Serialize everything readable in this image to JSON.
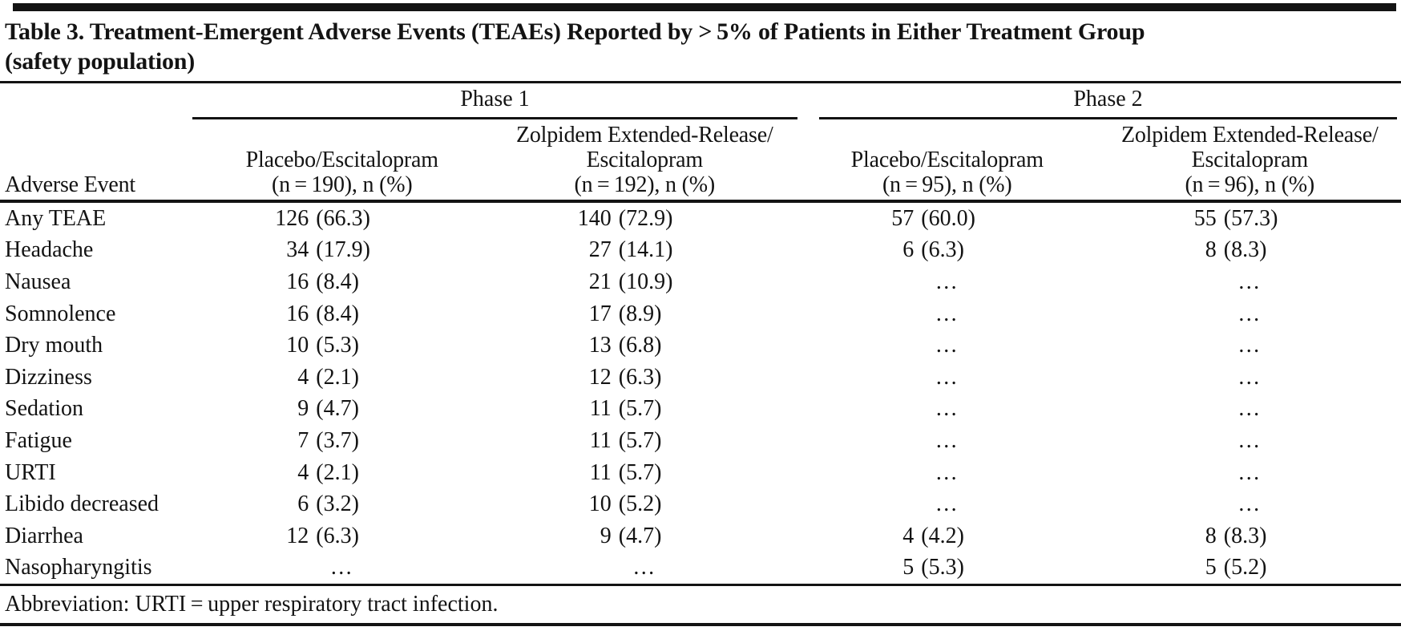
{
  "colors": {
    "ink": "#131313",
    "background": "#ffffff"
  },
  "title": {
    "lines": [
      "Table 3. Treatment-Emergent Adverse Events (TEAEs) Reported by > 5% of Patients in Either Treatment Group",
      "(safety population)"
    ]
  },
  "table": {
    "phases": [
      "Phase 1",
      "Phase 2"
    ],
    "header": {
      "row_label": {
        "line1": "",
        "line2": "",
        "line3": "Adverse Event"
      },
      "columns": [
        {
          "phase": "Phase 1",
          "line1": "",
          "line2": "Placebo/Escitalopram",
          "line3": "(n = 190), n (%)"
        },
        {
          "phase": "Phase 1",
          "line1": "Zolpidem Extended-Release/",
          "line2": "Escitalopram",
          "line3": "(n = 192), n (%)"
        },
        {
          "phase": "Phase 2",
          "line1": "",
          "line2": "Placebo/Escitalopram",
          "line3": "(n = 95), n (%)"
        },
        {
          "phase": "Phase 2",
          "line1": "Zolpidem Extended-Release/",
          "line2": "Escitalopram",
          "line3": "(n = 96), n (%)"
        }
      ]
    },
    "rows": [
      {
        "event": "Any TEAE",
        "values": [
          "126 (66.3)",
          "140 (72.9)",
          "57 (60.0)",
          "55 (57.3)"
        ]
      },
      {
        "event": "Headache",
        "values": [
          "34 (17.9)",
          "27 (14.1)",
          "6 (6.3)",
          "8 (8.3)"
        ]
      },
      {
        "event": "Nausea",
        "values": [
          "16 (8.4)",
          "21 (10.9)",
          "…",
          "…"
        ]
      },
      {
        "event": "Somnolence",
        "values": [
          "16 (8.4)",
          "17 (8.9)",
          "…",
          "…"
        ]
      },
      {
        "event": "Dry mouth",
        "values": [
          "10 (5.3)",
          "13 (6.8)",
          "…",
          "…"
        ]
      },
      {
        "event": "Dizziness",
        "values": [
          "4 (2.1)",
          "12 (6.3)",
          "…",
          "…"
        ]
      },
      {
        "event": "Sedation",
        "values": [
          "9 (4.7)",
          "11 (5.7)",
          "…",
          "…"
        ]
      },
      {
        "event": "Fatigue",
        "values": [
          "7 (3.7)",
          "11 (5.7)",
          "…",
          "…"
        ]
      },
      {
        "event": "URTI",
        "values": [
          "4 (2.1)",
          "11 (5.7)",
          "…",
          "…"
        ]
      },
      {
        "event": "Libido decreased",
        "values": [
          "6 (3.2)",
          "10 (5.2)",
          "…",
          "…"
        ]
      },
      {
        "event": "Diarrhea",
        "values": [
          "12 (6.3)",
          "9 (4.7)",
          "4 (4.2)",
          "8 (8.3)"
        ]
      },
      {
        "event": "Nasopharyngitis",
        "values": [
          "…",
          "…",
          "5 (5.3)",
          "5 (5.2)"
        ]
      }
    ],
    "footnote": "Abbreviation: URTI = upper respiratory tract infection."
  }
}
